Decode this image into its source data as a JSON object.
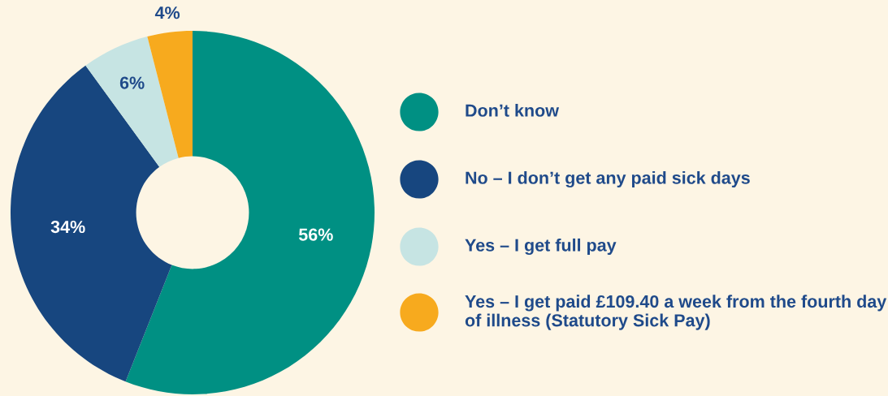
{
  "chart_data": {
    "type": "donut",
    "categories": [
      "Don’t know",
      "No – I don’t get any paid sick days",
      "Yes – I get full pay",
      "Yes – I get paid £109.40 a week from the fourth day of illness (Statutory Sick Pay)"
    ],
    "values": [
      56,
      34,
      6,
      4
    ],
    "colors": [
      "#009083",
      "#17467f",
      "#c6e4e3",
      "#f7aa1e"
    ],
    "value_labels": [
      "56%",
      "34%",
      "6%",
      "4%"
    ],
    "legend": "right"
  }
}
